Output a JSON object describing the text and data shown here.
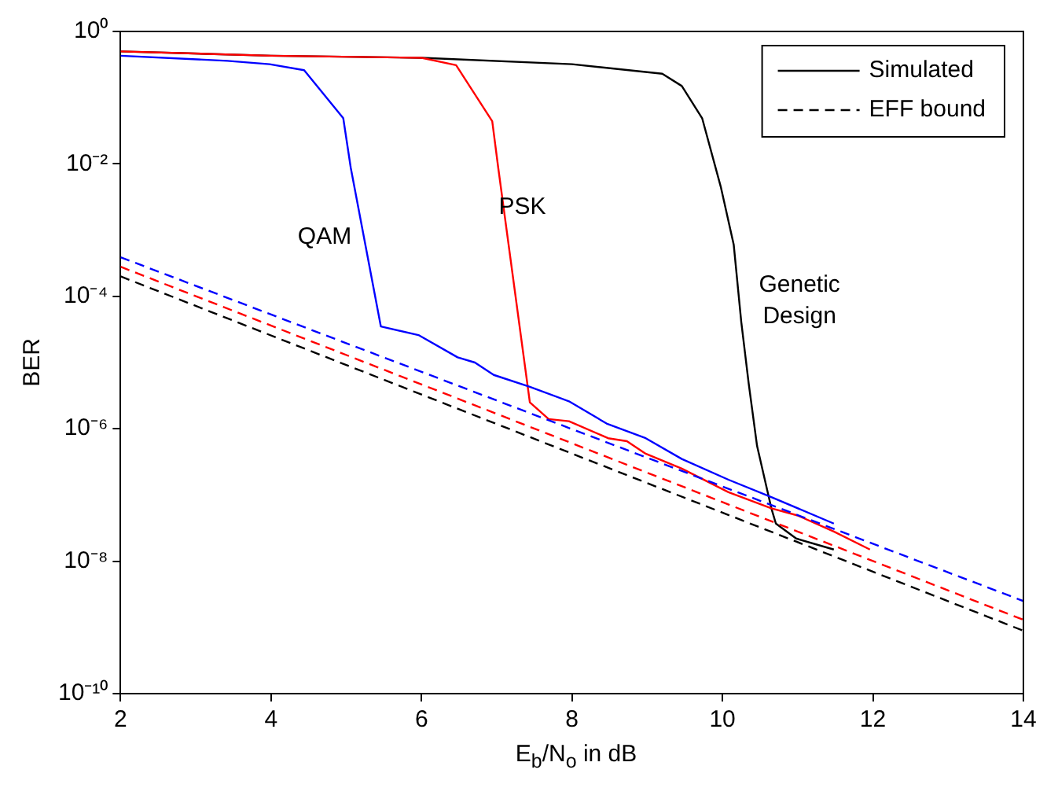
{
  "chart_data": {
    "type": "line",
    "xlabel": "E$_{b}$/N$_{o}$ in dB",
    "ylabel": "BER",
    "xlim": [
      2,
      14
    ],
    "xticks": [
      2,
      4,
      6,
      8,
      10,
      12,
      14
    ],
    "ylim": [
      1e-10,
      1
    ],
    "yticks": [
      {
        "value": 1e-10,
        "label": "10⁻¹⁰"
      },
      {
        "value": 1e-08,
        "label": "10⁻⁸"
      },
      {
        "value": 1e-06,
        "label": "10⁻⁶"
      },
      {
        "value": 0.0001,
        "label": "10⁻⁴"
      },
      {
        "value": 0.01,
        "label": "10⁻²"
      },
      {
        "value": 1,
        "label": "10⁰"
      }
    ],
    "log": "y",
    "grid": false,
    "legend": "top right",
    "marker": "none",
    "series": [
      {
        "name": "Simulated",
        "color": "#000000",
        "line_style": "solid",
        "x": [
          2,
          4,
          6,
          8,
          9.2,
          9.46,
          9.73,
          9.98,
          10.15,
          10.25,
          10.35,
          10.46,
          10.65,
          10.71,
          10.98,
          11.48
        ],
        "values": [
          0.5,
          0.43,
          0.4,
          0.32,
          0.23,
          0.15,
          0.049,
          0.0044,
          0.0006,
          4.1e-05,
          4.7e-06,
          5.5e-07,
          6.3e-08,
          3.7e-08,
          2.2e-08,
          1.5e-08
        ]
      },
      {
        "color": "#ff0000",
        "line_style": "solid",
        "x": [
          2,
          4,
          6,
          6.46,
          6.94,
          7.02,
          7.44,
          7.69,
          7.96,
          8.48,
          8.73,
          8.98,
          9.46,
          10.08,
          10.65,
          11,
          11.48,
          11.96
        ],
        "values": [
          0.5,
          0.43,
          0.4,
          0.31,
          0.044,
          0.0087,
          2.5e-06,
          1.4e-06,
          1.3e-06,
          7.2e-07,
          6.5e-07,
          4.2e-07,
          2.5e-07,
          1.1e-07,
          6.3e-08,
          4.9e-08,
          2.8e-08,
          1.5e-08
        ]
      },
      {
        "color": "#0000ff",
        "line_style": "solid",
        "x": [
          2,
          3.42,
          3.98,
          4.44,
          4.96,
          5.06,
          5.46,
          5.96,
          6.48,
          6.71,
          6.96,
          7.44,
          7.96,
          8.46,
          8.98,
          9.46,
          10.08,
          10.65,
          11.48
        ],
        "values": [
          0.43,
          0.36,
          0.32,
          0.26,
          0.049,
          0.0087,
          3.5e-05,
          2.6e-05,
          1.2e-05,
          1e-05,
          6.5e-06,
          4.3e-06,
          2.6e-06,
          1.2e-06,
          7.2e-07,
          3.5e-07,
          1.7e-07,
          9.3e-08,
          3.7e-08
        ]
      },
      {
        "name": "EFF bound",
        "color": "#000000",
        "line_style": "dashed",
        "x": [
          2,
          14
        ],
        "values": [
          0.0002,
          8.9e-10
        ]
      },
      {
        "color": "#ff0000",
        "line_style": "dashed",
        "x": [
          2,
          14
        ],
        "values": [
          0.00028,
          1.3e-09
        ]
      },
      {
        "color": "#0000ff",
        "line_style": "dashed",
        "x": [
          2,
          14
        ],
        "values": [
          0.00039,
          2.5e-09
        ]
      }
    ],
    "annotations": [
      "QAM",
      "PSK",
      "Genetic\nDesign"
    ]
  }
}
